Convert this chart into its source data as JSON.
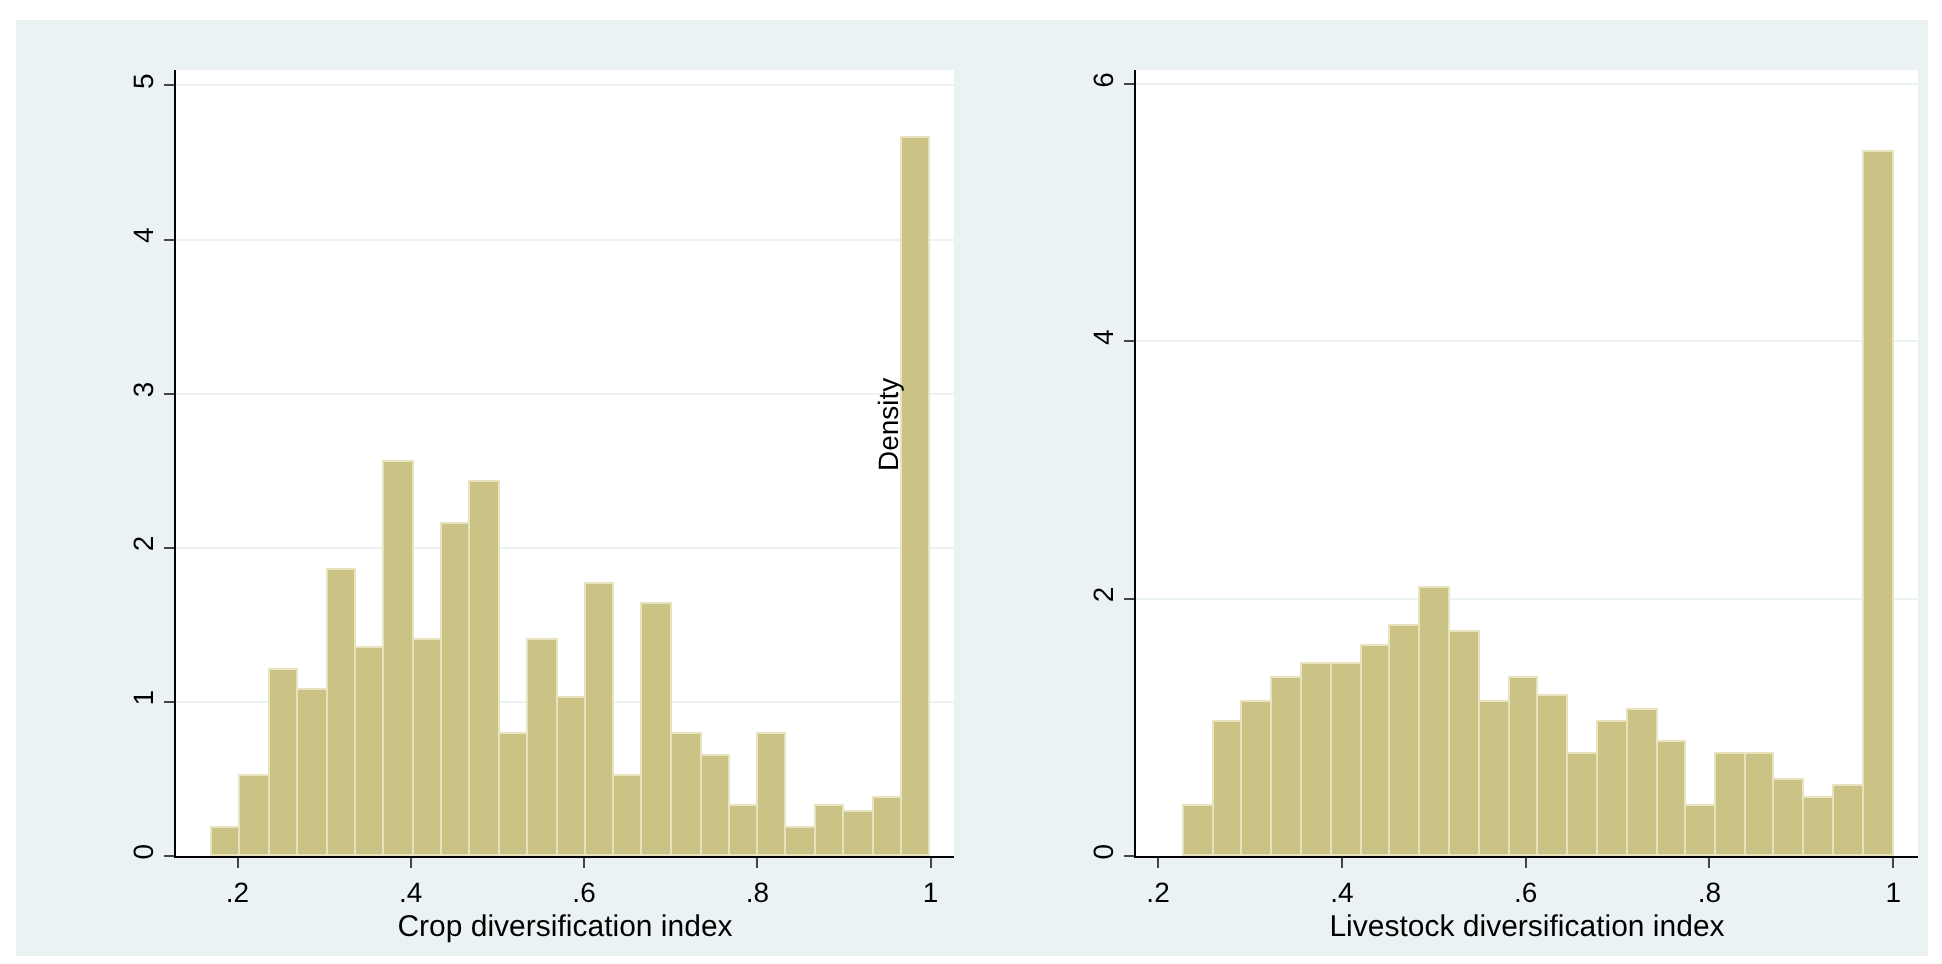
{
  "chart_data": [
    {
      "type": "histogram",
      "xlabel": "Crop diversification index",
      "color": "#cbc385",
      "bins": [
        0.171,
        0.204,
        0.237,
        0.27,
        0.304,
        0.337,
        0.37,
        0.403,
        0.436,
        0.469,
        0.503,
        0.536,
        0.569,
        0.602,
        0.635,
        0.668,
        0.702,
        0.735,
        0.768,
        0.801,
        0.834,
        0.867,
        0.901,
        0.934,
        0.967,
        1.0
      ],
      "values": [
        0.18,
        0.52,
        1.21,
        1.08,
        1.86,
        1.35,
        2.56,
        1.4,
        2.15,
        2.43,
        0.79,
        1.4,
        1.03,
        1.77,
        0.52,
        1.63,
        0.79,
        0.65,
        0.33,
        0.79,
        0.18,
        0.33,
        0.28,
        0.37,
        4.66
      ],
      "xlim": [
        0.129,
        1.027
      ],
      "xticks": [
        {
          "value": 0.2,
          "label": ".2"
        },
        {
          "value": 0.4,
          "label": ".4"
        },
        {
          "value": 0.6,
          "label": ".6"
        },
        {
          "value": 0.8,
          "label": ".8"
        },
        1
      ],
      "ylim": [
        0,
        5.1
      ],
      "yticks": [
        0,
        1,
        2,
        3,
        4,
        5
      ],
      "grid": "y",
      "annotations": [
        "Density"
      ]
    },
    {
      "type": "histogram",
      "xlabel": "Livestock diversification index",
      "color": "#cbc385",
      "bins": [
        0.228,
        0.26,
        0.292,
        0.324,
        0.357,
        0.389,
        0.421,
        0.453,
        0.485,
        0.518,
        0.55,
        0.582,
        0.614,
        0.646,
        0.678,
        0.711,
        0.743,
        0.775,
        0.807,
        0.839,
        0.871,
        0.904,
        0.936,
        0.968,
        1.0
      ],
      "values": [
        0.39,
        1.04,
        1.19,
        1.39,
        1.49,
        1.49,
        1.64,
        1.79,
        2.09,
        1.74,
        1.19,
        1.39,
        1.24,
        0.79,
        1.04,
        1.14,
        0.89,
        0.39,
        0.79,
        0.79,
        0.59,
        0.45,
        0.55,
        5.48
      ],
      "xlim": [
        0.176,
        1.027
      ],
      "xticks": [
        {
          "value": 0.2,
          "label": ".2"
        },
        {
          "value": 0.4,
          "label": ".4"
        },
        {
          "value": 0.6,
          "label": ".6"
        },
        {
          "value": 0.8,
          "label": ".8"
        },
        1
      ],
      "ylim": [
        0,
        6.11
      ],
      "yticks": [
        0,
        2,
        4,
        6
      ],
      "grid": "y"
    }
  ]
}
